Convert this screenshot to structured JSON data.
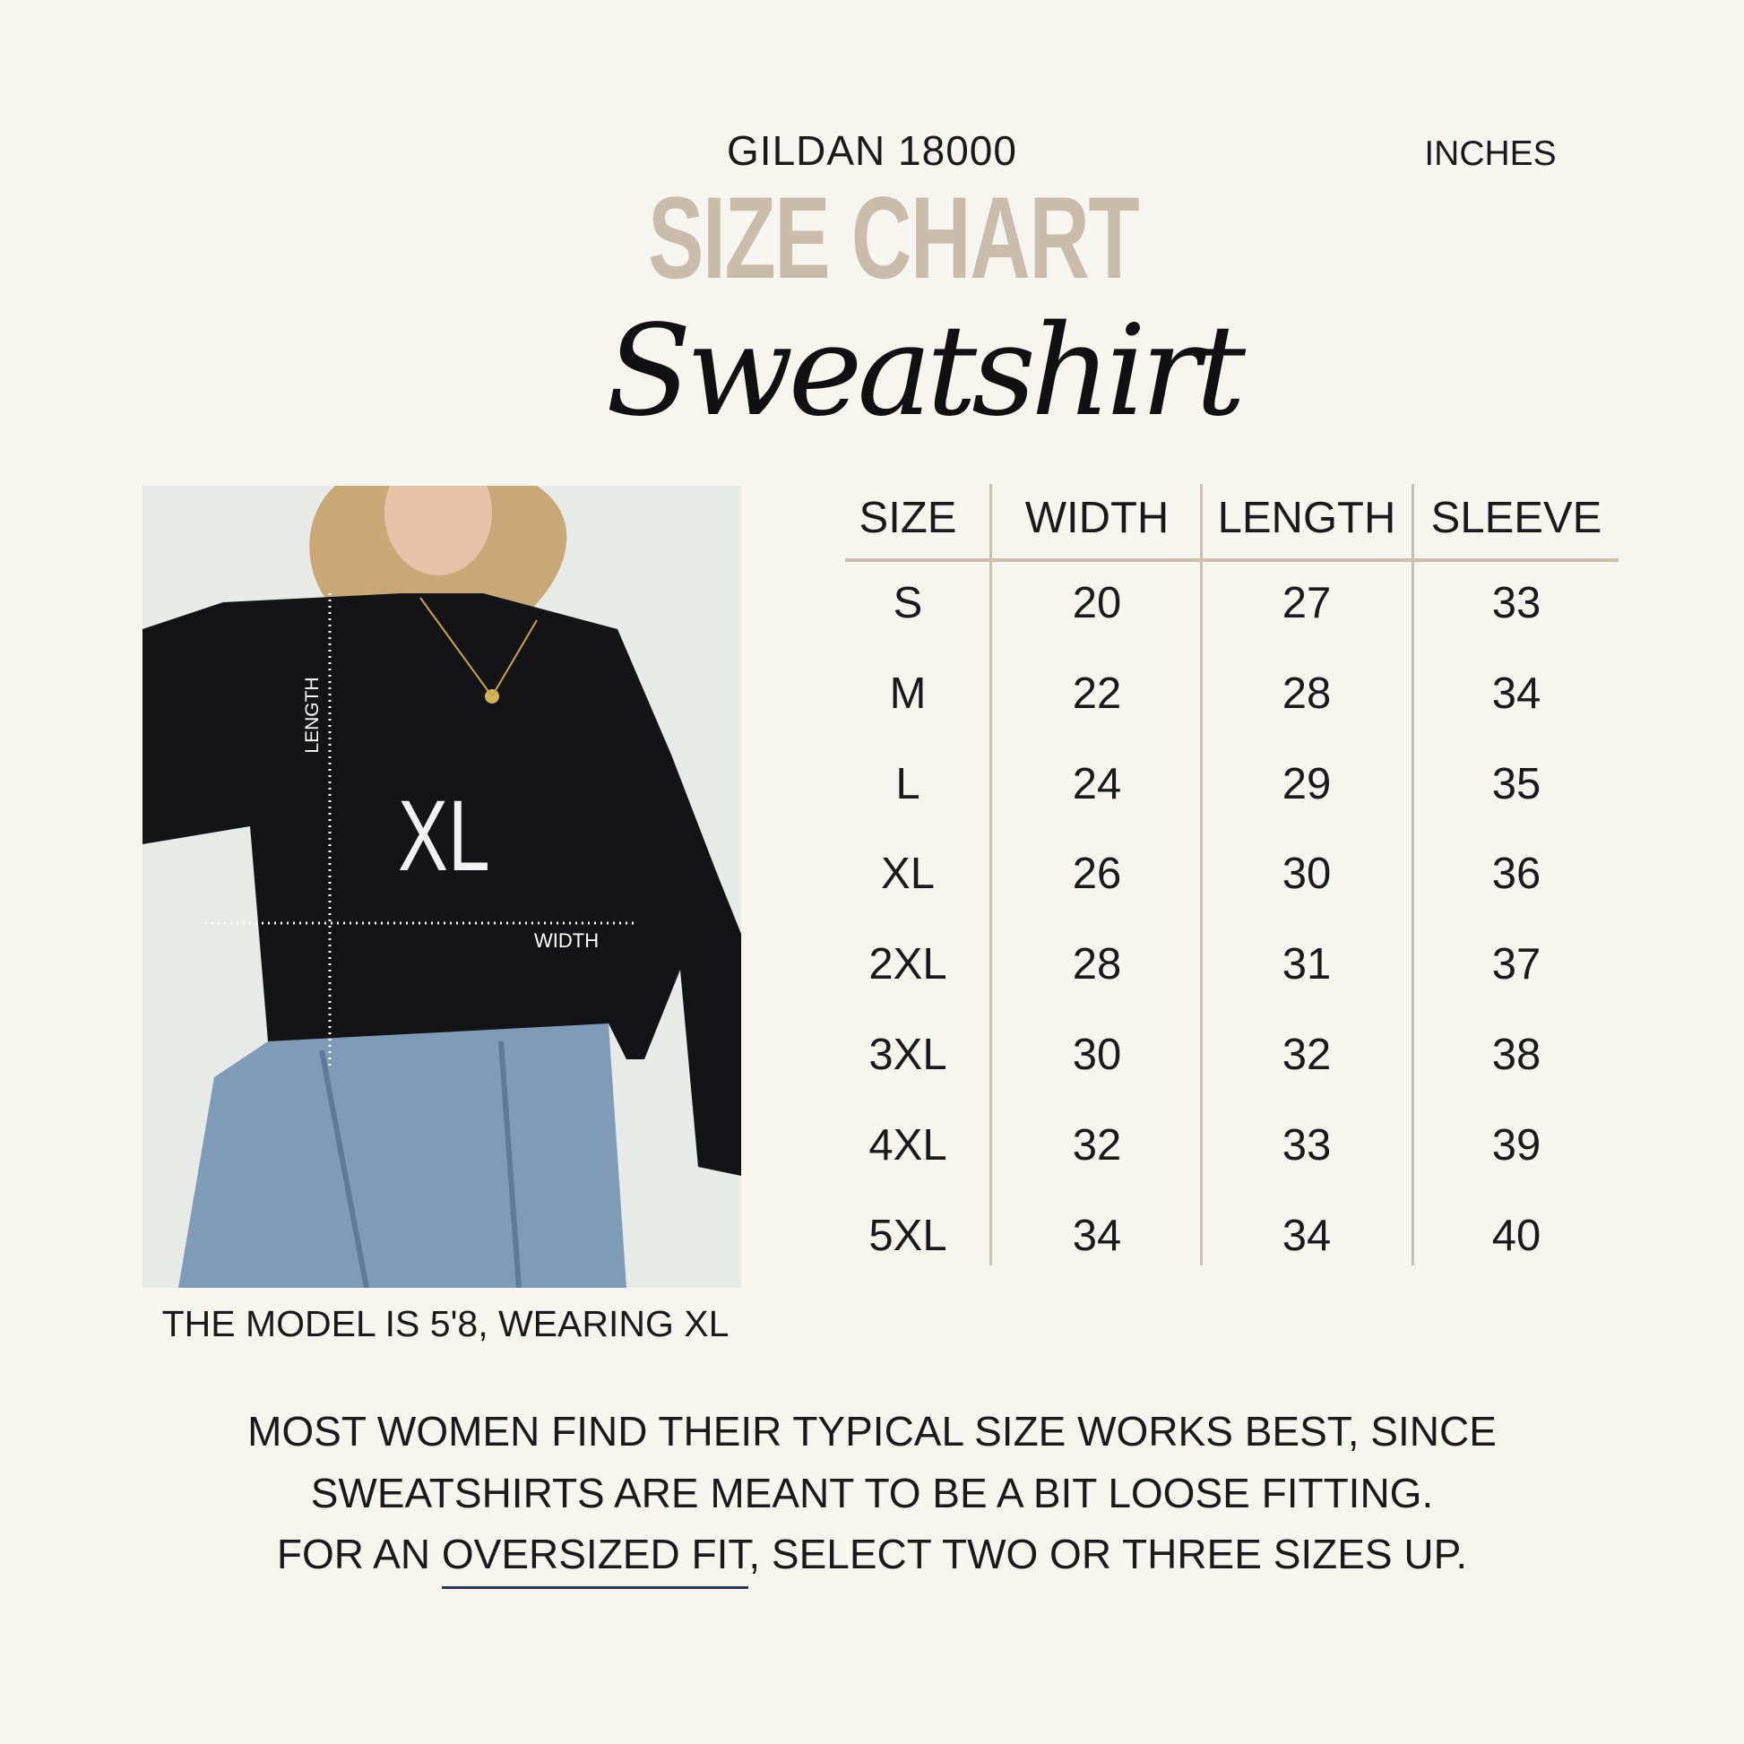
{
  "header": {
    "brand": "GILDAN 18000",
    "units": "INCHES",
    "title": "SIZE CHART",
    "script_title": "Sweatshirt"
  },
  "photo": {
    "size_label": "XL",
    "length_label": "LENGTH",
    "width_label": "WIDTH",
    "caption": "THE MODEL IS 5'8, WEARING XL"
  },
  "table": {
    "headers": [
      "SIZE",
      "WIDTH",
      "LENGTH",
      "SLEEVE"
    ],
    "rows": [
      [
        "S",
        "20",
        "27",
        "33"
      ],
      [
        "M",
        "22",
        "28",
        "34"
      ],
      [
        "L",
        "24",
        "29",
        "35"
      ],
      [
        "XL",
        "26",
        "30",
        "36"
      ],
      [
        "2XL",
        "28",
        "31",
        "37"
      ],
      [
        "3XL",
        "30",
        "32",
        "38"
      ],
      [
        "4XL",
        "32",
        "33",
        "39"
      ],
      [
        "5XL",
        "34",
        "34",
        "40"
      ]
    ]
  },
  "note": {
    "line1": "MOST WOMEN FIND THEIR TYPICAL SIZE WORKS BEST, SINCE",
    "line2": "SWEATSHIRTS ARE MEANT TO BE A BIT LOOSE FITTING.",
    "line3_pre": "FOR AN ",
    "line3_link": "OVERSIZED FIT",
    "line3_post": ", SELECT TWO OR THREE SIZES UP."
  },
  "colors": {
    "background": "#f7f5f0",
    "accent": "#c9bcab",
    "underline": "#2a3550"
  }
}
